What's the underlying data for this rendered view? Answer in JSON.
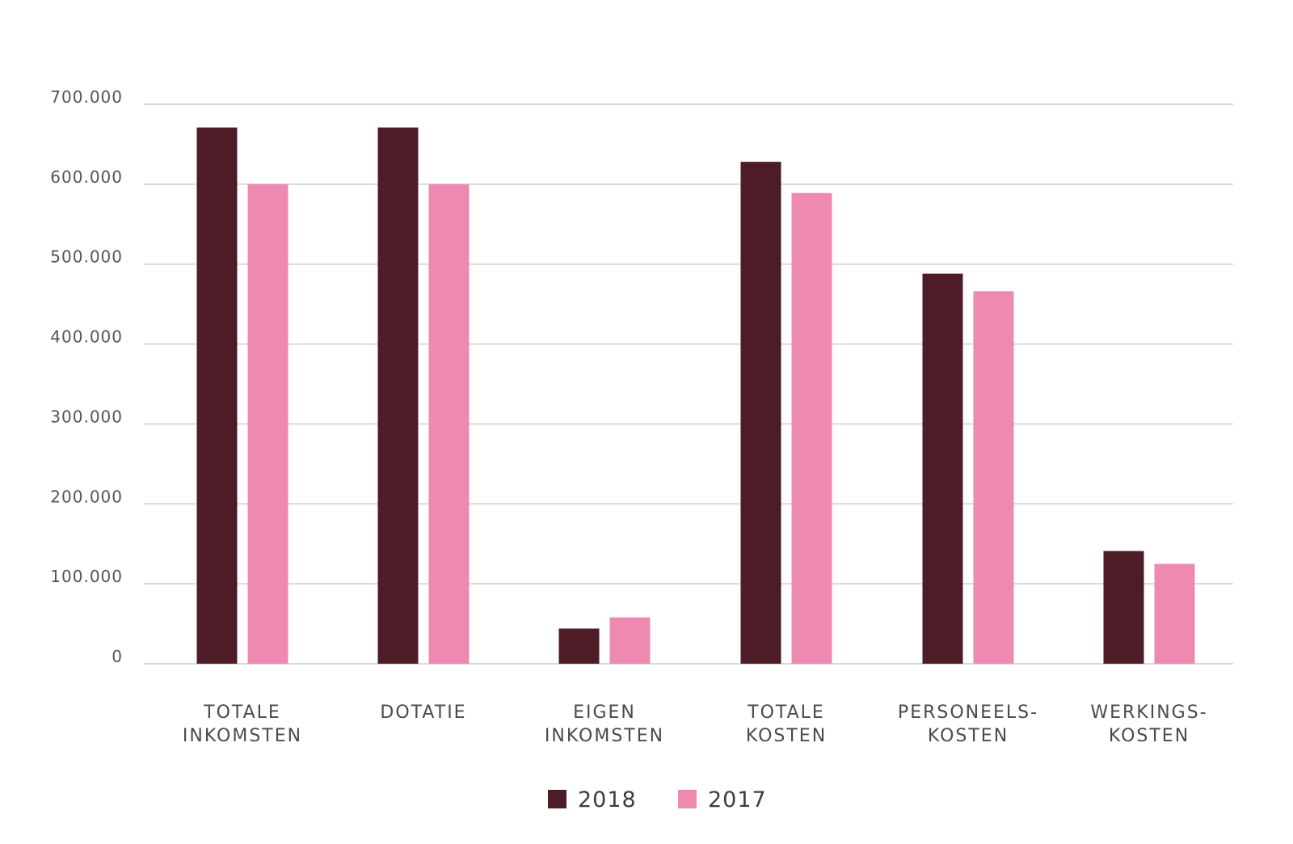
{
  "chart_data": {
    "type": "bar",
    "categories": [
      [
        "TOTALE",
        "INKOMSTEN"
      ],
      [
        "DOTATIE"
      ],
      [
        "EIGEN",
        "INKOMSTEN"
      ],
      [
        "TOTALE",
        "KOSTEN"
      ],
      [
        "PERSONEELS-",
        "KOSTEN"
      ],
      [
        "WERKINGS-",
        "KOSTEN"
      ]
    ],
    "series": [
      {
        "name": "2018",
        "color": "#4e1c27",
        "values": [
          671000,
          671000,
          44000,
          628000,
          488000,
          141000
        ]
      },
      {
        "name": "2017",
        "color": "#ee8ab1",
        "values": [
          600000,
          600000,
          58000,
          589000,
          466000,
          125000
        ]
      }
    ],
    "y_ticks": [
      "0",
      "100.000",
      "200.000",
      "300.000",
      "400.000",
      "500.000",
      "600.000",
      "700.000"
    ],
    "ylim": [
      0,
      700000
    ],
    "grid": true,
    "gridline_color": "#d9d9d9",
    "legend_position": "bottom-center",
    "title": "",
    "xlabel": "",
    "ylabel": ""
  }
}
